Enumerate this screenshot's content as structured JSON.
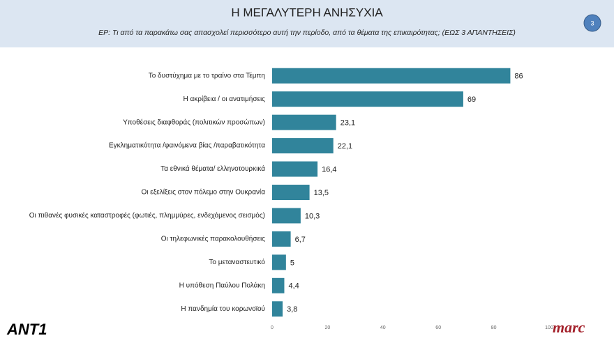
{
  "page_number": "3",
  "logos": {
    "left": "ANT1",
    "right": "marc"
  },
  "chart_data": {
    "type": "bar",
    "orientation": "horizontal",
    "title": "Η ΜΕΓΑΛΥΤΕΡΗ ΑΝΗΣΥΧΙΑ",
    "subtitle": "ΕΡ:  Τι από τα παρακάτω σας απασχολεί περισσότερο αυτή την περίοδο, από τα θέματα της επικαιρότητας; (ΕΩΣ 3 ΑΠΑΝΤΗΣΕΙΣ)",
    "categories": [
      "Το δυστύχημα με το τραίνο στα Τέμπη",
      "Η ακρίβεια / οι ανατιμήσεις",
      "Υποθέσεις διαφθοράς (πολιτικών προσώπων)",
      "Εγκληματικότητα /φαινόμενα βίας /παραβατικότητα",
      "Τα εθνικά θέματα/ ελληνοτουρκικά",
      "Οι εξελίξεις στον  πόλεμο στην Ουκρανία",
      "Οι πιθανές φυσικές καταστροφές (φωτιές, πλημμύρες, ενδεχόμενος σεισμός)",
      "Οι τηλεφωνικές παρακολουθήσεις",
      "Το μεταναστευτικό",
      "Η υπόθεση Παύλου Πολάκη",
      "Η πανδημία του κορωνοϊού"
    ],
    "values": [
      86,
      69,
      23.1,
      22.1,
      16.4,
      13.5,
      10.3,
      6.7,
      5,
      4.4,
      3.8
    ],
    "value_labels": [
      "86",
      "69",
      "23,1",
      "22,1",
      "16,4",
      "13,5",
      "10,3",
      "6,7",
      "5",
      "4,4",
      "3,8"
    ],
    "color": "#31849b",
    "xlim": [
      0,
      100
    ],
    "xticks": [
      0,
      20,
      40,
      60,
      80,
      100
    ],
    "grid": false
  }
}
